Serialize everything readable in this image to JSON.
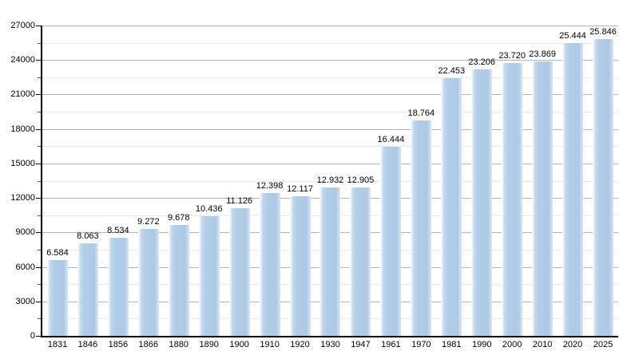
{
  "chart_data": {
    "type": "bar",
    "title": "",
    "xlabel": "",
    "ylabel": "",
    "categories": [
      "1831",
      "1846",
      "1856",
      "1866",
      "1880",
      "1890",
      "1900",
      "1910",
      "1920",
      "1930",
      "1947",
      "1961",
      "1970",
      "1981",
      "1990",
      "2000",
      "2010",
      "2020",
      "2025"
    ],
    "values": [
      6584,
      8063,
      8534,
      9272,
      9678,
      10436,
      11126,
      12398,
      12117,
      12932,
      12905,
      16444,
      18764,
      22453,
      23206,
      23720,
      23869,
      25444,
      25846
    ],
    "value_labels": [
      "6.584",
      "8.063",
      "8.534",
      "9.272",
      "9.678",
      "10.436",
      "11.126",
      "12.398",
      "12.117",
      "12.932",
      "12.905",
      "16.444",
      "18.764",
      "22.453",
      "23.206",
      "23.720",
      "23.869",
      "25.444",
      "25.846"
    ],
    "ylim": [
      0,
      27000
    ],
    "y_major_step": 3000,
    "y_minor_step": 1500,
    "y_tick_labels": [
      "0",
      "3000",
      "6000",
      "9000",
      "12000",
      "15000",
      "18000",
      "21000",
      "24000",
      "27000"
    ],
    "grid": true,
    "legend": "none",
    "colors": {
      "bar_fill": "#b2cde8",
      "bar_edge_highlight": "#ffffff",
      "major_gridline": "#b3b3b3",
      "minor_gridline": "#e9e9e9",
      "axis": "#000000",
      "text": "#000000",
      "background": "#ffffff"
    }
  }
}
